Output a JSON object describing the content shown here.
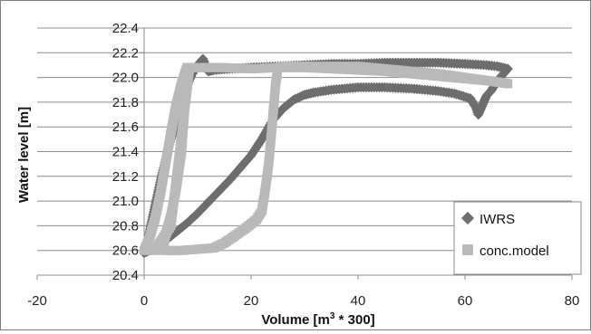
{
  "chart_data": {
    "type": "scatter",
    "title": "",
    "xlabel_main": "Volume [m",
    "xlabel_sup": "3",
    "xlabel_tail": " * 300]",
    "ylabel": "Water level [m]",
    "xlim": [
      -20,
      80
    ],
    "ylim": [
      20.4,
      22.4
    ],
    "xticks": [
      "-20",
      "0",
      "20",
      "40",
      "60",
      "80"
    ],
    "yticks": [
      "20.4",
      "20.6",
      "20.8",
      "21.0",
      "21.2",
      "21.4",
      "21.6",
      "21.8",
      "22.0",
      "22.2",
      "22.4"
    ],
    "xtick_values": [
      -20,
      0,
      20,
      40,
      60,
      80
    ],
    "ytick_values": [
      20.4,
      20.6,
      20.8,
      21.0,
      21.2,
      21.4,
      21.6,
      21.8,
      22.0,
      22.2,
      22.4
    ],
    "grid": "horizontal",
    "legend_position": "right",
    "series": [
      {
        "name": "IWRS",
        "marker": "diamond",
        "color": "#6d6d6d",
        "points": [
          [
            0,
            20.58
          ],
          [
            0.5,
            20.63
          ],
          [
            1,
            20.75
          ],
          [
            2,
            20.95
          ],
          [
            3,
            21.15
          ],
          [
            4,
            21.33
          ],
          [
            5,
            21.5
          ],
          [
            6,
            21.65
          ],
          [
            7,
            21.8
          ],
          [
            8,
            21.93
          ],
          [
            9,
            22.03
          ],
          [
            10,
            22.1
          ],
          [
            11,
            22.15
          ],
          [
            12,
            22.05
          ],
          [
            13,
            22.06
          ],
          [
            16,
            22.07
          ],
          [
            20,
            22.08
          ],
          [
            25,
            22.09
          ],
          [
            30,
            22.1
          ],
          [
            35,
            22.11
          ],
          [
            40,
            22.11
          ],
          [
            45,
            22.12
          ],
          [
            50,
            22.12
          ],
          [
            55,
            22.12
          ],
          [
            60,
            22.11
          ],
          [
            64,
            22.1
          ],
          [
            66,
            22.09
          ],
          [
            68,
            22.07
          ],
          [
            67,
            22.02
          ],
          [
            66,
            21.97
          ],
          [
            65,
            21.9
          ],
          [
            64,
            21.85
          ],
          [
            63.5,
            21.8
          ],
          [
            63,
            21.75
          ],
          [
            62.5,
            21.7
          ],
          [
            62,
            21.76
          ],
          [
            61,
            21.83
          ],
          [
            58,
            21.87
          ],
          [
            55,
            21.89
          ],
          [
            50,
            21.91
          ],
          [
            45,
            21.92
          ],
          [
            40,
            21.92
          ],
          [
            35,
            21.9
          ],
          [
            32,
            21.88
          ],
          [
            30,
            21.86
          ],
          [
            28,
            21.82
          ],
          [
            26,
            21.75
          ],
          [
            24,
            21.65
          ],
          [
            22,
            21.5
          ],
          [
            20,
            21.37
          ],
          [
            18,
            21.27
          ],
          [
            16,
            21.17
          ],
          [
            14,
            21.08
          ],
          [
            12,
            20.99
          ],
          [
            10,
            20.9
          ],
          [
            8,
            20.82
          ],
          [
            6,
            20.75
          ],
          [
            4,
            20.68
          ],
          [
            2,
            20.62
          ],
          [
            1,
            20.6
          ],
          [
            0,
            20.58
          ]
        ]
      },
      {
        "name": "conc.model",
        "marker": "square",
        "color": "#b9b9b9",
        "points": [
          [
            0,
            20.6
          ],
          [
            1,
            20.7
          ],
          [
            2,
            20.85
          ],
          [
            3,
            21.05
          ],
          [
            4,
            21.3
          ],
          [
            5,
            21.55
          ],
          [
            6,
            21.78
          ],
          [
            7,
            21.95
          ],
          [
            8,
            22.08
          ],
          [
            10,
            22.08
          ],
          [
            12,
            22.08
          ],
          [
            15,
            22.08
          ],
          [
            20,
            22.07
          ],
          [
            25,
            22.08
          ],
          [
            30,
            22.08
          ],
          [
            35,
            22.07
          ],
          [
            40,
            22.06
          ],
          [
            45,
            22.05
          ],
          [
            50,
            22.03
          ],
          [
            55,
            22.01
          ],
          [
            60,
            21.99
          ],
          [
            65,
            21.97
          ],
          [
            68,
            21.95
          ],
          [
            65,
            21.97
          ],
          [
            60,
            22.0
          ],
          [
            55,
            22.03
          ],
          [
            50,
            22.05
          ],
          [
            45,
            22.07
          ],
          [
            40,
            22.09
          ],
          [
            35,
            22.09
          ],
          [
            30,
            22.09
          ],
          [
            28,
            22.09
          ],
          [
            26,
            22.09
          ],
          [
            25,
            22.08
          ],
          [
            24.6,
            21.95
          ],
          [
            24.3,
            21.8
          ],
          [
            24,
            21.65
          ],
          [
            23.7,
            21.5
          ],
          [
            23.4,
            21.35
          ],
          [
            23,
            21.2
          ],
          [
            22.5,
            21.05
          ],
          [
            22,
            20.92
          ],
          [
            21,
            20.85
          ],
          [
            19,
            20.78
          ],
          [
            17,
            20.72
          ],
          [
            15,
            20.66
          ],
          [
            13,
            20.62
          ],
          [
            10,
            20.61
          ],
          [
            7,
            20.6
          ],
          [
            5,
            20.6
          ],
          [
            3.5,
            20.6
          ],
          [
            4,
            20.72
          ],
          [
            5,
            20.88
          ],
          [
            6,
            21.1
          ],
          [
            7,
            21.4
          ],
          [
            7.5,
            21.7
          ],
          [
            8,
            22.0
          ],
          [
            8.5,
            22.08
          ],
          [
            5,
            20.8
          ],
          [
            2,
            20.6
          ],
          [
            0,
            20.6
          ]
        ]
      }
    ]
  }
}
